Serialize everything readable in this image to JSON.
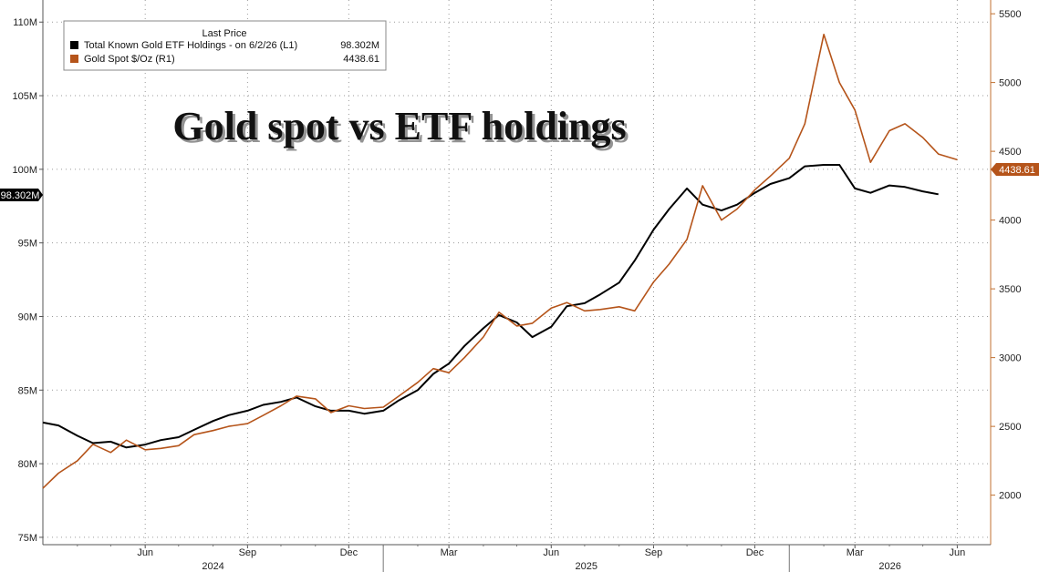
{
  "chart_data": {
    "type": "line",
    "title": "Gold spot vs ETF holdings",
    "legend": {
      "header": "Last Price",
      "placement": "top-left",
      "entries": [
        {
          "label": "Total Known Gold ETF Holdings -  on 6/2/26  (L1)",
          "value": "98.302M",
          "color": "#000000"
        },
        {
          "label": "Gold Spot $/Oz  (R1)",
          "value": "4438.61",
          "color": "#b5541a"
        }
      ]
    },
    "x_axis": {
      "month_ticks": [
        "Jun",
        "Sep",
        "Dec",
        "Mar",
        "Jun",
        "Sep",
        "Dec",
        "Mar",
        "Jun"
      ],
      "year_labels": [
        "2024",
        "2025",
        "2026"
      ],
      "range": [
        "2024-03-01",
        "2026-07-01"
      ]
    },
    "y_left": {
      "ticks": [
        "75M",
        "80M",
        "85M",
        "90M",
        "95M",
        "100M",
        "105M",
        "110M"
      ],
      "range_millions": [
        74.5,
        111.5
      ],
      "last_value_flag": "98.302M"
    },
    "y_right": {
      "ticks": [
        "2000",
        "2500",
        "3000",
        "3500",
        "4000",
        "4500",
        "5000",
        "5500"
      ],
      "range": [
        1640,
        5600
      ],
      "last_value_flag": "4438.61"
    },
    "grid": true,
    "series": [
      {
        "name": "Total Known Gold ETF Holdings -  on 6/2/26  (L1)",
        "axis": "left",
        "color": "#000000",
        "points": [
          [
            "2024-03-01",
            82.8
          ],
          [
            "2024-03-15",
            82.6
          ],
          [
            "2024-04-01",
            81.9
          ],
          [
            "2024-04-15",
            81.4
          ],
          [
            "2024-05-01",
            81.5
          ],
          [
            "2024-05-15",
            81.1
          ],
          [
            "2024-06-01",
            81.3
          ],
          [
            "2024-06-15",
            81.6
          ],
          [
            "2024-07-01",
            81.8
          ],
          [
            "2024-07-15",
            82.3
          ],
          [
            "2024-08-01",
            82.9
          ],
          [
            "2024-08-15",
            83.3
          ],
          [
            "2024-09-01",
            83.6
          ],
          [
            "2024-09-15",
            84.0
          ],
          [
            "2024-10-01",
            84.2
          ],
          [
            "2024-10-15",
            84.5
          ],
          [
            "2024-11-01",
            83.9
          ],
          [
            "2024-11-15",
            83.6
          ],
          [
            "2024-12-01",
            83.6
          ],
          [
            "2024-12-15",
            83.4
          ],
          [
            "2025-01-01",
            83.6
          ],
          [
            "2025-01-15",
            84.3
          ],
          [
            "2025-02-01",
            85.0
          ],
          [
            "2025-02-15",
            86.1
          ],
          [
            "2025-03-01",
            86.8
          ],
          [
            "2025-03-15",
            88.0
          ],
          [
            "2025-04-01",
            89.2
          ],
          [
            "2025-04-15",
            90.1
          ],
          [
            "2025-05-01",
            89.6
          ],
          [
            "2025-05-15",
            88.6
          ],
          [
            "2025-06-01",
            89.3
          ],
          [
            "2025-06-15",
            90.7
          ],
          [
            "2025-07-01",
            90.9
          ],
          [
            "2025-07-15",
            91.5
          ],
          [
            "2025-08-01",
            92.3
          ],
          [
            "2025-08-15",
            93.8
          ],
          [
            "2025-09-01",
            95.9
          ],
          [
            "2025-09-15",
            97.3
          ],
          [
            "2025-10-01",
            98.7
          ],
          [
            "2025-10-15",
            97.6
          ],
          [
            "2025-11-01",
            97.2
          ],
          [
            "2025-11-15",
            97.6
          ],
          [
            "2025-12-01",
            98.4
          ],
          [
            "2025-12-15",
            99.0
          ],
          [
            "2026-01-01",
            99.4
          ],
          [
            "2026-01-15",
            100.2
          ],
          [
            "2026-02-01",
            100.3
          ],
          [
            "2026-02-15",
            100.3
          ],
          [
            "2026-03-01",
            98.7
          ],
          [
            "2026-03-15",
            98.4
          ],
          [
            "2026-04-01",
            98.9
          ],
          [
            "2026-04-15",
            98.8
          ],
          [
            "2026-05-01",
            98.5
          ],
          [
            "2026-05-15",
            98.302
          ]
        ]
      },
      {
        "name": "Gold Spot $/Oz  (R1)",
        "axis": "right",
        "color": "#b5541a",
        "points": [
          [
            "2024-03-01",
            2050
          ],
          [
            "2024-03-15",
            2160
          ],
          [
            "2024-04-01",
            2250
          ],
          [
            "2024-04-15",
            2370
          ],
          [
            "2024-05-01",
            2310
          ],
          [
            "2024-05-15",
            2400
          ],
          [
            "2024-06-01",
            2330
          ],
          [
            "2024-06-15",
            2340
          ],
          [
            "2024-07-01",
            2360
          ],
          [
            "2024-07-15",
            2440
          ],
          [
            "2024-08-01",
            2470
          ],
          [
            "2024-08-15",
            2500
          ],
          [
            "2024-09-01",
            2520
          ],
          [
            "2024-09-15",
            2580
          ],
          [
            "2024-10-01",
            2650
          ],
          [
            "2024-10-15",
            2720
          ],
          [
            "2024-11-01",
            2700
          ],
          [
            "2024-11-15",
            2600
          ],
          [
            "2024-12-01",
            2650
          ],
          [
            "2024-12-15",
            2630
          ],
          [
            "2025-01-01",
            2640
          ],
          [
            "2025-01-15",
            2720
          ],
          [
            "2025-02-01",
            2820
          ],
          [
            "2025-02-15",
            2920
          ],
          [
            "2025-03-01",
            2890
          ],
          [
            "2025-03-15",
            3000
          ],
          [
            "2025-04-01",
            3150
          ],
          [
            "2025-04-15",
            3330
          ],
          [
            "2025-05-01",
            3230
          ],
          [
            "2025-05-15",
            3250
          ],
          [
            "2025-06-01",
            3360
          ],
          [
            "2025-06-15",
            3400
          ],
          [
            "2025-07-01",
            3340
          ],
          [
            "2025-07-15",
            3350
          ],
          [
            "2025-08-01",
            3370
          ],
          [
            "2025-08-15",
            3340
          ],
          [
            "2025-09-01",
            3550
          ],
          [
            "2025-09-15",
            3680
          ],
          [
            "2025-10-01",
            3860
          ],
          [
            "2025-10-15",
            4250
          ],
          [
            "2025-11-01",
            4000
          ],
          [
            "2025-11-15",
            4080
          ],
          [
            "2025-12-01",
            4220
          ],
          [
            "2025-12-15",
            4320
          ],
          [
            "2026-01-01",
            4450
          ],
          [
            "2026-01-15",
            4700
          ],
          [
            "2026-02-01",
            5350
          ],
          [
            "2026-02-15",
            5000
          ],
          [
            "2026-03-01",
            4800
          ],
          [
            "2026-03-15",
            4420
          ],
          [
            "2026-04-01",
            4650
          ],
          [
            "2026-04-15",
            4700
          ],
          [
            "2026-05-01",
            4600
          ],
          [
            "2026-05-15",
            4480
          ],
          [
            "2026-06-01",
            4438.61
          ]
        ]
      }
    ]
  }
}
